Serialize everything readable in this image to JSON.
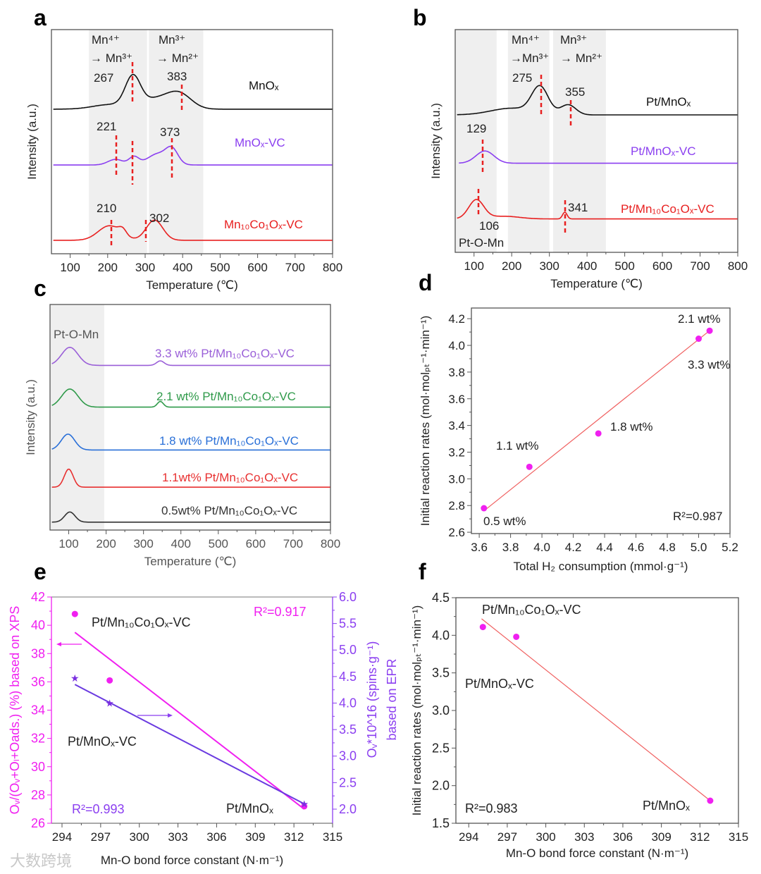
{
  "panel_labels": [
    "a",
    "b",
    "c",
    "d",
    "e",
    "f"
  ],
  "watermark": "大数跨境",
  "chart_data": [
    {
      "panel": "a",
      "type": "line",
      "xlabel": "Temperature (℃)",
      "ylabel": "Intensity (a.u.)",
      "xlim": [
        50,
        800
      ],
      "xticks": [
        100,
        200,
        300,
        400,
        500,
        600,
        700,
        800
      ],
      "region_labels": [
        "Mn⁴⁺",
        "→ Mn³⁺",
        "Mn³⁺",
        "→ Mn²⁺"
      ],
      "series": [
        {
          "name": "MnOₓ",
          "color": "#111111",
          "peaks": [
            267,
            383
          ]
        },
        {
          "name": "MnOₓ-VC",
          "color": "#8b3ff0",
          "peaks": [
            221,
            373
          ]
        },
        {
          "name": "Mn₁₀Co₁Oₓ-VC",
          "color": "#e82020",
          "peaks": [
            210,
            302
          ]
        }
      ]
    },
    {
      "panel": "b",
      "type": "line",
      "xlabel": "Temperature (℃)",
      "ylabel": "Intensity (a.u.)",
      "xlim": [
        50,
        800
      ],
      "xticks": [
        100,
        200,
        300,
        400,
        500,
        600,
        700,
        800
      ],
      "region_labels": [
        "Mn⁴⁺",
        "→Mn³⁺",
        "Mn³⁺",
        "→ Mn²⁺"
      ],
      "annotation": "Pt-O-Mn",
      "series": [
        {
          "name": "Pt/MnOₓ",
          "color": "#111111",
          "peaks": [
            275,
            355
          ]
        },
        {
          "name": "Pt/MnOₓ-VC",
          "color": "#8b3ff0",
          "peaks": [
            129
          ]
        },
        {
          "name": "Pt/Mn₁₀Co₁Oₓ-VC",
          "color": "#e82020",
          "peaks": [
            106,
            341
          ]
        }
      ]
    },
    {
      "panel": "c",
      "type": "line",
      "xlabel": "Temperature (℃)",
      "ylabel": "Intensity (a.u.)",
      "xlim": [
        50,
        800
      ],
      "xticks": [
        100,
        200,
        300,
        400,
        500,
        600,
        700,
        800
      ],
      "annotation": "Pt-O-Mn",
      "series": [
        {
          "name": "3.3 wt% Pt/Mn₁₀Co₁Oₓ-VC",
          "color": "#9a5fd8"
        },
        {
          "name": "2.1 wt% Pt/Mn₁₀Co₁Oₓ-VC",
          "color": "#2f9a4a"
        },
        {
          "name": "1.8 wt% Pt/Mn₁₀Co₁Oₓ-VC",
          "color": "#2a70d8"
        },
        {
          "name": "1.1wt% Pt/Mn₁₀Co₁Oₓ-VC",
          "color": "#e83030"
        },
        {
          "name": "0.5wt% Pt/Mn₁₀Co₁Oₓ-VC",
          "color": "#333333"
        }
      ]
    },
    {
      "panel": "d",
      "type": "scatter",
      "xlabel": "Total H₂ consumption (mmol·g⁻¹)",
      "ylabel": "Initial reaction rates (mol·molₚₜ⁻¹·min⁻¹)",
      "xlim": [
        3.55,
        5.2
      ],
      "ylim": [
        2.59,
        4.28
      ],
      "xticks": [
        "3.6",
        "3.8",
        "4.0",
        "4.2",
        "4.4",
        "4.6",
        "4.8",
        "5.0",
        "5.2"
      ],
      "yticks": [
        "2.6",
        "2.8",
        "3.0",
        "3.2",
        "3.4",
        "3.6",
        "3.8",
        "4.0",
        "4.2"
      ],
      "point_color": "#f020f0",
      "fit_color": "#f06060",
      "points": [
        {
          "label": "0.5 wt%",
          "x": 3.63,
          "y": 2.78
        },
        {
          "label": "1.1 wt%",
          "x": 3.92,
          "y": 3.09
        },
        {
          "label": "1.8 wt%",
          "x": 4.36,
          "y": 3.34
        },
        {
          "label": "3.3 wt%",
          "x": 5.0,
          "y": 4.05
        },
        {
          "label": "2.1 wt%",
          "x": 5.07,
          "y": 4.11
        }
      ],
      "fit": [
        [
          3.63,
          2.76
        ],
        [
          5.08,
          4.12
        ]
      ],
      "r2": "R²=0.987"
    },
    {
      "panel": "e",
      "type": "scatter",
      "xlabel": "Mn-O bond force constant (N·m⁻¹)",
      "ylabel_left": "Oᵥ/(Oᵥ+Oₗ+Oads.) (%) based on XPS",
      "ylabel_right": [
        "Oᵥ*10^16 (spins·g⁻¹)",
        "based on EPR"
      ],
      "xlim": [
        293.18,
        315
      ],
      "ylim_left": [
        26,
        42
      ],
      "ylim_right": [
        1.734,
        6.0
      ],
      "xticks": [
        "294",
        "297",
        "300",
        "303",
        "306",
        "309",
        "312",
        "315"
      ],
      "yticks_left": [
        "26",
        "28",
        "30",
        "32",
        "34",
        "36",
        "38",
        "40",
        "42"
      ],
      "yticks_right": [
        "2.0",
        "2.5",
        "3.0",
        "3.5",
        "4.0",
        "4.5",
        "5.0",
        "5.5",
        "6.0"
      ],
      "series": [
        {
          "name": "XPS",
          "axis": "left",
          "color": "#f020f0",
          "marker": "circle",
          "points": [
            [
              295.0,
              40.8
            ],
            [
              297.7,
              36.1
            ],
            [
              312.8,
              27.2
            ]
          ],
          "fit": [
            [
              295.0,
              39.5
            ],
            [
              312.8,
              27.0
            ]
          ],
          "r2": "R²=0.917"
        },
        {
          "name": "EPR",
          "axis": "right",
          "color": "#7a2fe0",
          "marker": "star",
          "points": [
            [
              295.0,
              4.47
            ],
            [
              297.7,
              4.0
            ],
            [
              312.8,
              2.1
            ]
          ],
          "fit": [
            [
              295.0,
              4.35
            ],
            [
              312.8,
              2.1
            ]
          ],
          "r2": "R²=0.993"
        }
      ],
      "sample_labels": [
        "Pt/Mn₁₀Co₁Oₓ-VC",
        "Pt/MnOₓ-VC",
        "Pt/MnOₓ"
      ],
      "star_glyph": "★"
    },
    {
      "panel": "f",
      "type": "scatter",
      "xlabel": "Mn-O bond force constant (N·m⁻¹)",
      "ylabel": "Initial reaction rates (mol·molₚₜ⁻¹·min⁻¹)",
      "xlim": [
        293.0,
        315
      ],
      "ylim": [
        1.5,
        4.5
      ],
      "xticks": [
        "294",
        "297",
        "300",
        "303",
        "306",
        "309",
        "312",
        "315"
      ],
      "yticks": [
        "1.5",
        "2.0",
        "2.5",
        "3.0",
        "3.5",
        "4.0",
        "4.5"
      ],
      "point_color": "#f020f0",
      "fit_color": "#f06060",
      "points": [
        {
          "label": "Pt/Mn₁₀Co₁Oₓ-VC",
          "x": 295.1,
          "y": 4.11
        },
        {
          "label": "Pt/MnOₓ-VC",
          "x": 297.7,
          "y": 3.98
        },
        {
          "label": "Pt/MnOₓ",
          "x": 312.8,
          "y": 1.8
        }
      ],
      "fit": [
        [
          295.0,
          4.22
        ],
        [
          312.8,
          1.8
        ]
      ],
      "r2": "R²=0.983"
    }
  ]
}
